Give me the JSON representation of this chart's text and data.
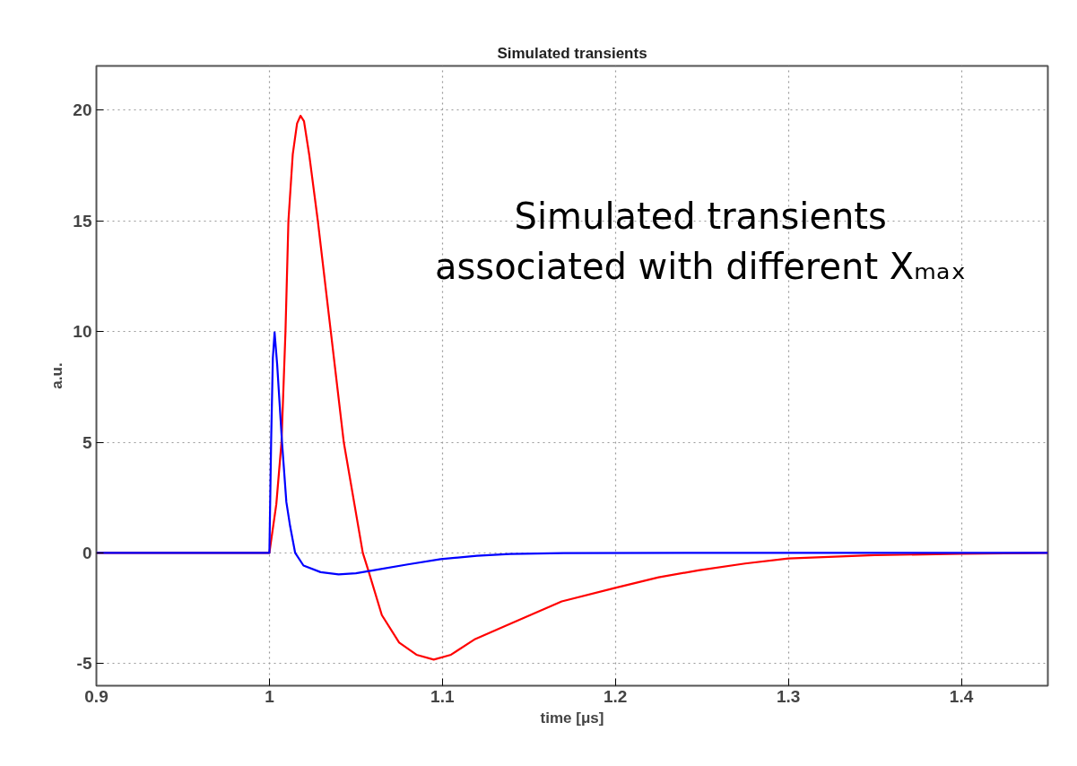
{
  "chart_data": {
    "type": "line",
    "title": "Simulated transients",
    "xlabel": "time [μs]",
    "ylabel": "a.u.",
    "xlim": [
      0.9,
      1.45
    ],
    "xticks": [
      0.9,
      1,
      1.1,
      1.2,
      1.3,
      1.4
    ],
    "ylim": [
      -6,
      22
    ],
    "yticks": [
      -5,
      0,
      5,
      10,
      15,
      20
    ],
    "grid": true,
    "line_style": "solid",
    "marker": "none",
    "annotations": [
      "Simulated transients\nassociated with different Xₘₐₓ"
    ],
    "series": [
      {
        "color": "#ff0000",
        "x": [
          0.9,
          1.0,
          1.004,
          1.007,
          1.0093,
          1.011,
          1.0135,
          1.016,
          1.018,
          1.02,
          1.023,
          1.028,
          1.0355,
          1.043,
          1.054,
          1.0575,
          1.065,
          1.075,
          1.085,
          1.095,
          1.105,
          1.119,
          1.135,
          1.149,
          1.169,
          1.2,
          1.225,
          1.248,
          1.275,
          1.3,
          1.35,
          1.4,
          1.45
        ],
        "values": [
          0,
          0,
          2.2,
          5,
          10,
          15,
          18,
          19.4,
          19.75,
          19.5,
          18,
          15,
          10,
          5,
          0,
          -0.87,
          -2.81,
          -4.05,
          -4.6,
          -4.82,
          -4.6,
          -3.89,
          -3.35,
          -2.87,
          -2.19,
          -1.58,
          -1.1,
          -0.79,
          -0.48,
          -0.25,
          -0.1,
          -0.04,
          0
        ]
      },
      {
        "color": "#0000ff",
        "x": [
          0.9,
          1.0,
          1.001,
          1.002,
          1.003,
          1.0045,
          1.0073,
          1.0098,
          1.012,
          1.0149,
          1.0197,
          1.0296,
          1.04,
          1.05,
          1.06,
          1.08,
          1.099,
          1.12,
          1.139,
          1.17,
          1.25,
          1.35,
          1.45
        ],
        "values": [
          0,
          0,
          5,
          8.8,
          9.96,
          8.5,
          5,
          2.3,
          1.2,
          0,
          -0.57,
          -0.87,
          -0.97,
          -0.92,
          -0.79,
          -0.52,
          -0.28,
          -0.13,
          -0.05,
          -0.01,
          0,
          0,
          0
        ]
      }
    ]
  }
}
